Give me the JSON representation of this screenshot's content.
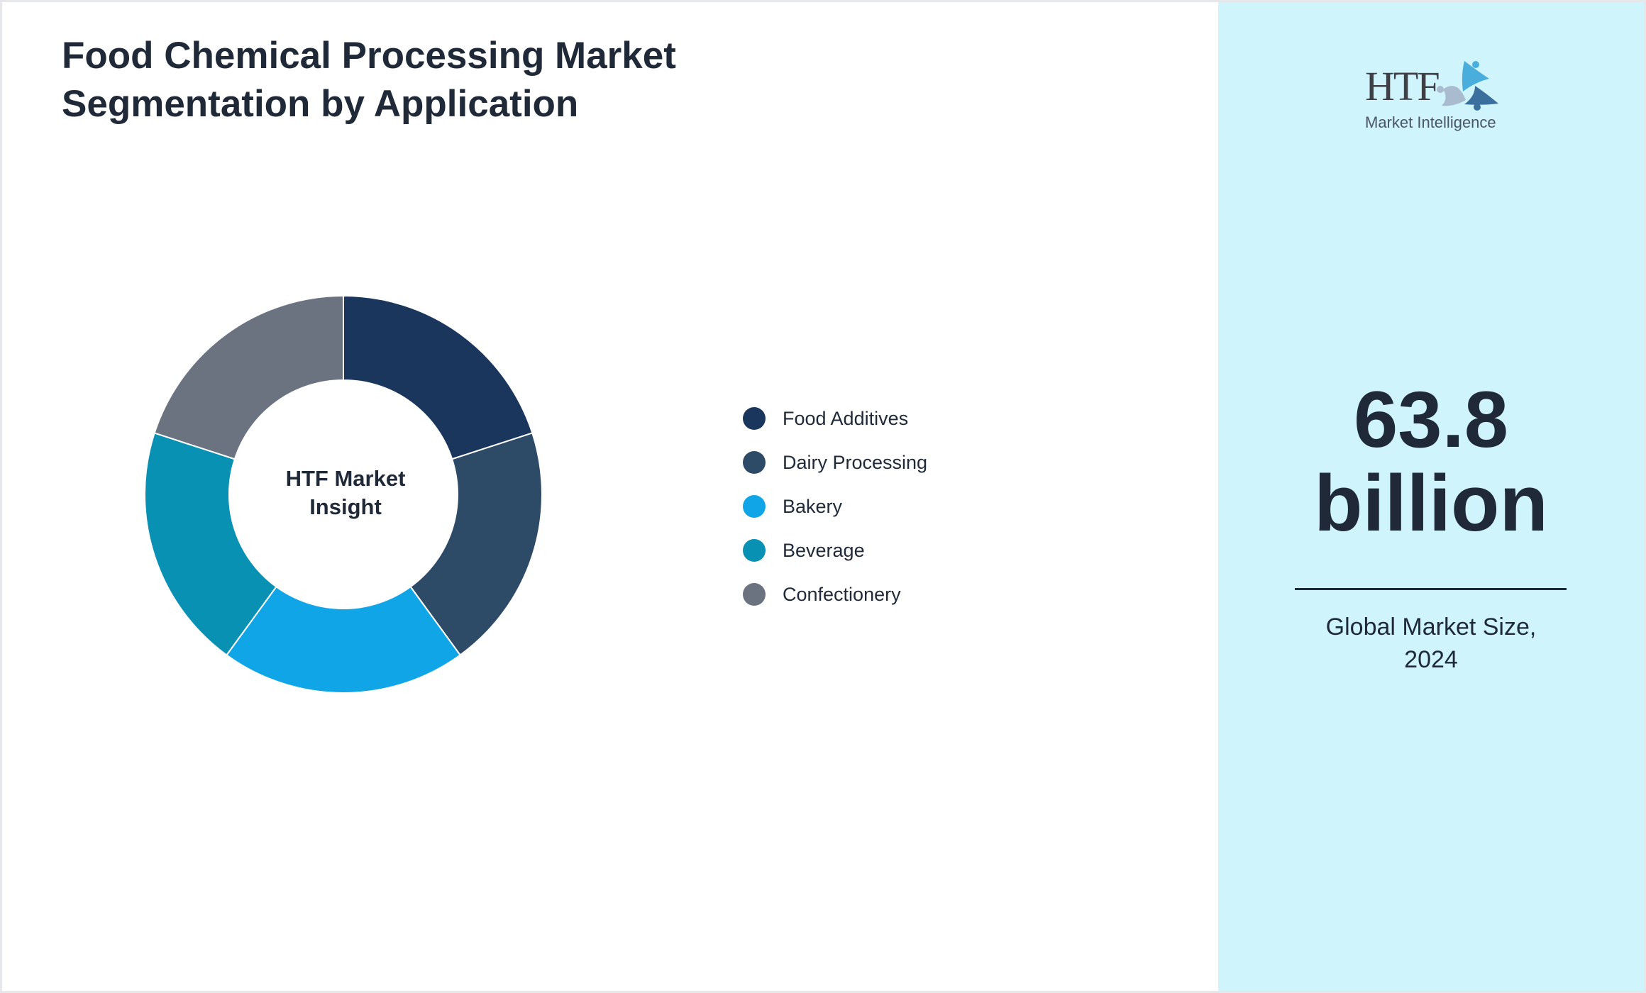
{
  "title_lines": [
    "Food Chemical Processing Market",
    "Segmentation by Application"
  ],
  "logo": {
    "text": "HTF",
    "subtext": "Market Intelligence"
  },
  "chart_data": {
    "type": "pie",
    "variant": "donut",
    "center_label_lines": [
      "HTF Market",
      "Insight"
    ],
    "categories": [
      "Food Additives",
      "Dairy Processing",
      "Bakery",
      "Beverage",
      "Confectionery"
    ],
    "values": [
      20,
      20,
      20,
      20,
      20
    ],
    "colors": [
      "#1b365d",
      "#2d4a66",
      "#10a5e6",
      "#0891b2",
      "#6b7280"
    ],
    "legend_position": "right"
  },
  "market": {
    "value_lines": [
      "63.8",
      "billion"
    ],
    "caption_lines": [
      "Global Market Size,",
      "2024"
    ]
  },
  "colors": {
    "panel_bg": "#cff4fc",
    "text": "#1f2937"
  }
}
